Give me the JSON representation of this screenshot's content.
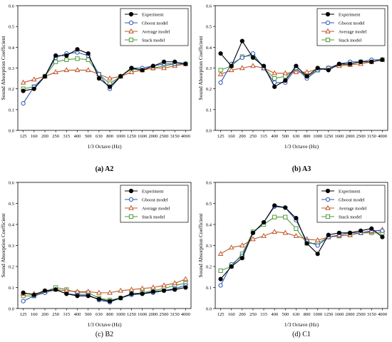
{
  "chart_data": [
    {
      "type": "line",
      "caption_bold": "(a) A2",
      "caption_rest": "",
      "xlabel": "1/3 Octave (Hz)",
      "ylabel": "Sound Absorption Coefficient",
      "ylim": [
        0,
        0.6
      ],
      "yticks": [
        "0.0",
        "0.1",
        "0.2",
        "0.3",
        "0.4",
        "0.5",
        "0.6"
      ],
      "categories": [
        "125",
        "160",
        "200",
        "250",
        "315",
        "400",
        "500",
        "630",
        "800",
        "1000",
        "1250",
        "1600",
        "2000",
        "2500",
        "3150",
        "4000"
      ],
      "grid": false,
      "legend": "top-right",
      "series": [
        {
          "name": "Experiment",
          "color": "#000000",
          "marker": "circle-filled",
          "values": [
            0.19,
            0.2,
            0.26,
            0.36,
            0.36,
            0.39,
            0.37,
            0.25,
            0.21,
            0.26,
            0.3,
            0.29,
            0.31,
            0.33,
            0.33,
            0.32
          ]
        },
        {
          "name": "Gboost model",
          "color": "#2f57b5",
          "marker": "circle-open",
          "values": [
            0.13,
            0.21,
            0.26,
            0.35,
            0.37,
            0.375,
            0.36,
            0.27,
            0.2,
            0.26,
            0.3,
            0.3,
            0.31,
            0.32,
            0.32,
            0.32
          ]
        },
        {
          "name": "Average model",
          "color": "#c1562b",
          "marker": "triangle-open",
          "values": [
            0.23,
            0.245,
            0.26,
            0.28,
            0.29,
            0.29,
            0.29,
            0.27,
            0.25,
            0.26,
            0.28,
            0.29,
            0.3,
            0.3,
            0.31,
            0.32
          ]
        },
        {
          "name": "Stack model",
          "color": "#4e9a3a",
          "marker": "square-open",
          "values": [
            0.2,
            0.21,
            0.26,
            0.33,
            0.34,
            0.345,
            0.34,
            0.27,
            0.225,
            0.26,
            0.295,
            0.29,
            0.3,
            0.31,
            0.32,
            0.32
          ]
        }
      ]
    },
    {
      "type": "line",
      "caption_bold": "(b) A3",
      "caption_rest": "",
      "xlabel": "1/3 Octave (Hz)",
      "ylabel": "Sound Absorption Coefficient",
      "ylim": [
        0,
        0.6
      ],
      "yticks": [
        "0.0",
        "0.1",
        "0.2",
        "0.3",
        "0.4",
        "0.5",
        "0.6"
      ],
      "categories": [
        "125",
        "160",
        "200",
        "250",
        "315",
        "400",
        "500",
        "630",
        "800",
        "1000",
        "1250",
        "1600",
        "2000",
        "2500",
        "3150",
        "4000"
      ],
      "grid": false,
      "legend": "top-right",
      "series": [
        {
          "name": "Experiment",
          "color": "#000000",
          "marker": "circle-filled",
          "values": [
            0.37,
            0.31,
            0.43,
            0.35,
            0.31,
            0.21,
            0.24,
            0.31,
            0.26,
            0.3,
            0.29,
            0.32,
            0.32,
            0.33,
            0.33,
            0.34
          ]
        },
        {
          "name": "Gboost model",
          "color": "#2f57b5",
          "marker": "circle-open",
          "values": [
            0.23,
            0.32,
            0.35,
            0.37,
            0.3,
            0.23,
            0.23,
            0.3,
            0.25,
            0.29,
            0.3,
            0.32,
            0.33,
            0.33,
            0.34,
            0.34
          ]
        },
        {
          "name": "Average model",
          "color": "#c1562b",
          "marker": "triangle-open",
          "values": [
            0.27,
            0.29,
            0.3,
            0.31,
            0.3,
            0.275,
            0.275,
            0.28,
            0.28,
            0.295,
            0.3,
            0.31,
            0.315,
            0.32,
            0.33,
            0.34
          ]
        },
        {
          "name": "Stack model",
          "color": "#4e9a3a",
          "marker": "square-open",
          "values": [
            0.29,
            0.31,
            0.355,
            0.36,
            0.3,
            0.25,
            0.26,
            0.295,
            0.26,
            0.29,
            0.3,
            0.315,
            0.32,
            0.33,
            0.33,
            0.34
          ]
        }
      ]
    },
    {
      "type": "line",
      "caption_bold": "",
      "caption_rest": "(c) B2",
      "xlabel": "1/3 Octave (Hz)",
      "ylabel": "Sound Absorption Coefficient",
      "ylim": [
        0,
        0.6
      ],
      "yticks": [
        "0.0",
        "0.1",
        "0.2",
        "0.3",
        "0.4",
        "0.5",
        "0.6"
      ],
      "categories": [
        "125",
        "160",
        "200",
        "250",
        "315",
        "400",
        "500",
        "630",
        "800",
        "1000",
        "1250",
        "1600",
        "2000",
        "2500",
        "3150",
        "4000"
      ],
      "grid": false,
      "legend": "top-right",
      "series": [
        {
          "name": "Experiment",
          "color": "#000000",
          "marker": "circle-filled",
          "values": [
            0.075,
            0.065,
            0.085,
            0.09,
            0.07,
            0.06,
            0.06,
            0.045,
            0.035,
            0.05,
            0.07,
            0.07,
            0.08,
            0.085,
            0.09,
            0.1
          ]
        },
        {
          "name": "Gboost model",
          "color": "#2f57b5",
          "marker": "circle-open",
          "values": [
            0.035,
            0.06,
            0.075,
            0.09,
            0.07,
            0.065,
            0.065,
            0.04,
            0.03,
            0.05,
            0.065,
            0.07,
            0.075,
            0.085,
            0.095,
            0.11
          ]
        },
        {
          "name": "Average model",
          "color": "#c1562b",
          "marker": "triangle-open",
          "values": [
            0.07,
            0.07,
            0.08,
            0.09,
            0.085,
            0.08,
            0.08,
            0.075,
            0.075,
            0.085,
            0.09,
            0.095,
            0.1,
            0.11,
            0.12,
            0.14
          ]
        },
        {
          "name": "Stack model",
          "color": "#4e9a3a",
          "marker": "square-open",
          "values": [
            0.06,
            0.06,
            0.08,
            0.1,
            0.09,
            0.075,
            0.075,
            0.05,
            0.04,
            0.05,
            0.07,
            0.075,
            0.085,
            0.095,
            0.11,
            0.12
          ]
        }
      ]
    },
    {
      "type": "line",
      "caption_bold": "",
      "caption_rest": "(d) C1",
      "xlabel": "1/3 Octave (Hz)",
      "ylabel": "Sound Absorption Coefficient",
      "ylim": [
        0,
        0.6
      ],
      "yticks": [
        "0.0",
        "0.1",
        "0.2",
        "0.3",
        "0.4",
        "0.5",
        "0.6"
      ],
      "categories": [
        "125",
        "160",
        "200",
        "250",
        "315",
        "400",
        "500",
        "630",
        "800",
        "1000",
        "1250",
        "1600",
        "2000",
        "2500",
        "3150",
        "4000"
      ],
      "grid": false,
      "legend": "top-right",
      "series": [
        {
          "name": "Experiment",
          "color": "#000000",
          "marker": "circle-filled",
          "values": [
            0.14,
            0.2,
            0.24,
            0.36,
            0.41,
            0.49,
            0.48,
            0.43,
            0.31,
            0.26,
            0.35,
            0.36,
            0.36,
            0.37,
            0.38,
            0.34
          ]
        },
        {
          "name": "Gboost model",
          "color": "#2f57b5",
          "marker": "circle-open",
          "values": [
            0.11,
            0.21,
            0.25,
            0.36,
            0.41,
            0.485,
            0.48,
            0.42,
            0.32,
            0.3,
            0.34,
            0.35,
            0.36,
            0.36,
            0.37,
            0.37
          ]
        },
        {
          "name": "Average model",
          "color": "#c1562b",
          "marker": "triangle-open",
          "values": [
            0.26,
            0.29,
            0.3,
            0.33,
            0.345,
            0.365,
            0.36,
            0.345,
            0.33,
            0.325,
            0.34,
            0.345,
            0.35,
            0.36,
            0.365,
            0.375
          ]
        },
        {
          "name": "Stack model",
          "color": "#4e9a3a",
          "marker": "square-open",
          "values": [
            0.18,
            0.2,
            0.26,
            0.365,
            0.4,
            0.435,
            0.435,
            0.38,
            0.31,
            0.31,
            0.34,
            0.345,
            0.35,
            0.36,
            0.36,
            0.36
          ]
        }
      ]
    }
  ]
}
